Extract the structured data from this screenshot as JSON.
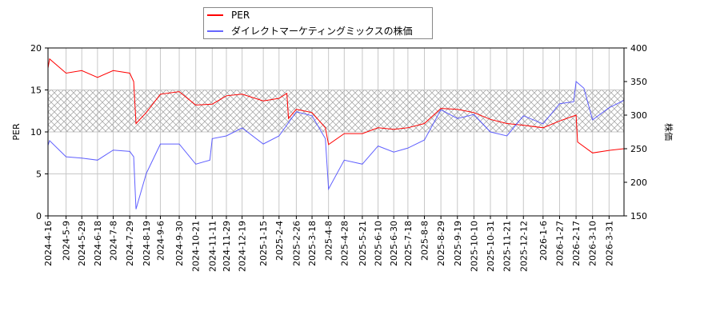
{
  "chart_data": {
    "type": "line",
    "xlabel": "",
    "ylabel_left": "PER",
    "ylabel_right": "株価",
    "ylim_left": [
      0,
      20
    ],
    "ylim_right": [
      150,
      400
    ],
    "yticks_left": [
      0,
      5,
      10,
      15,
      20
    ],
    "yticks_right": [
      150,
      200,
      250,
      300,
      350,
      400
    ],
    "xlim": [
      "2024-04-16",
      "2026-04-19"
    ],
    "xticks": [
      "2024-4-16",
      "2024-5-9",
      "2024-5-29",
      "2024-6-18",
      "2024-7-8",
      "2024-7-29",
      "2024-8-19",
      "2024-9-6",
      "2024-9-30",
      "2024-10-21",
      "2024-11-11",
      "2024-11-29",
      "2024-12-19",
      "2025-1-15",
      "2025-2-4",
      "2025-2-26",
      "2025-3-18",
      "2025-4-8",
      "2025-4-28",
      "2025-5-21",
      "2025-6-10",
      "2025-6-30",
      "2025-7-18",
      "2025-8-8",
      "2025-8-29",
      "2025-9-19",
      "2025-10-10",
      "2025-10-31",
      "2025-11-21",
      "2025-12-12",
      "2026-1-6",
      "2026-1-27",
      "2026-2-17",
      "2026-3-10",
      "2026-3-31"
    ],
    "grid": true,
    "shaded_band_left": [
      10,
      15
    ],
    "legend_placement": "top-center",
    "series": [
      {
        "name": "PER",
        "axis": "left",
        "color": "#ff0000",
        "x": [
          "2024-04-16",
          "2024-04-18",
          "2024-05-09",
          "2024-05-29",
          "2024-06-18",
          "2024-07-08",
          "2024-07-29",
          "2024-08-03",
          "2024-08-06",
          "2024-08-19",
          "2024-09-06",
          "2024-09-30",
          "2024-10-21",
          "2024-11-11",
          "2024-11-29",
          "2024-12-19",
          "2025-01-15",
          "2025-02-04",
          "2025-02-14",
          "2025-02-16",
          "2025-02-26",
          "2025-03-18",
          "2025-04-04",
          "2025-04-08",
          "2025-04-28",
          "2025-05-21",
          "2025-06-10",
          "2025-06-30",
          "2025-07-18",
          "2025-08-08",
          "2025-08-29",
          "2025-09-19",
          "2025-10-10",
          "2025-10-31",
          "2025-11-21",
          "2025-12-12",
          "2026-01-06",
          "2026-01-27",
          "2026-02-17",
          "2026-02-19",
          "2026-03-10",
          "2026-03-31",
          "2026-04-19"
        ],
        "y": [
          17.6,
          18.7,
          17.0,
          17.3,
          16.5,
          17.3,
          17.0,
          16.0,
          11.0,
          12.3,
          14.5,
          14.8,
          13.2,
          13.3,
          14.3,
          14.5,
          13.7,
          14.0,
          14.6,
          11.6,
          12.7,
          12.3,
          10.5,
          8.5,
          9.8,
          9.8,
          10.5,
          10.3,
          10.5,
          11.0,
          12.8,
          12.7,
          12.3,
          11.5,
          11.0,
          10.8,
          10.5,
          11.3,
          12.0,
          8.8,
          7.5,
          7.8,
          8.0
        ]
      },
      {
        "name": "ダイレクトマーケティングミックスの株価",
        "axis": "right",
        "color": "#0000ff",
        "x": [
          "2024-04-16",
          "2024-04-18",
          "2024-05-09",
          "2024-05-29",
          "2024-06-18",
          "2024-07-08",
          "2024-07-29",
          "2024-08-03",
          "2024-08-06",
          "2024-08-19",
          "2024-09-06",
          "2024-09-30",
          "2024-10-21",
          "2024-11-08",
          "2024-11-11",
          "2024-11-29",
          "2024-12-19",
          "2025-01-15",
          "2025-02-04",
          "2025-02-26",
          "2025-03-18",
          "2025-04-04",
          "2025-04-08",
          "2025-04-28",
          "2025-05-21",
          "2025-06-10",
          "2025-06-30",
          "2025-07-18",
          "2025-08-08",
          "2025-08-29",
          "2025-09-19",
          "2025-10-10",
          "2025-10-31",
          "2025-11-21",
          "2025-12-12",
          "2026-01-06",
          "2026-01-27",
          "2026-02-14",
          "2026-02-17",
          "2026-02-27",
          "2026-03-10",
          "2026-03-31",
          "2026-04-19"
        ],
        "y": [
          255,
          262,
          238,
          236,
          233,
          248,
          246,
          238,
          160,
          213,
          257,
          257,
          227,
          233,
          265,
          269,
          281,
          257,
          269,
          305,
          299,
          265,
          190,
          233,
          227,
          254,
          245,
          251,
          263,
          308,
          295,
          301,
          275,
          269,
          299,
          287,
          317,
          320,
          350,
          340,
          293,
          311,
          322
        ]
      }
    ]
  }
}
